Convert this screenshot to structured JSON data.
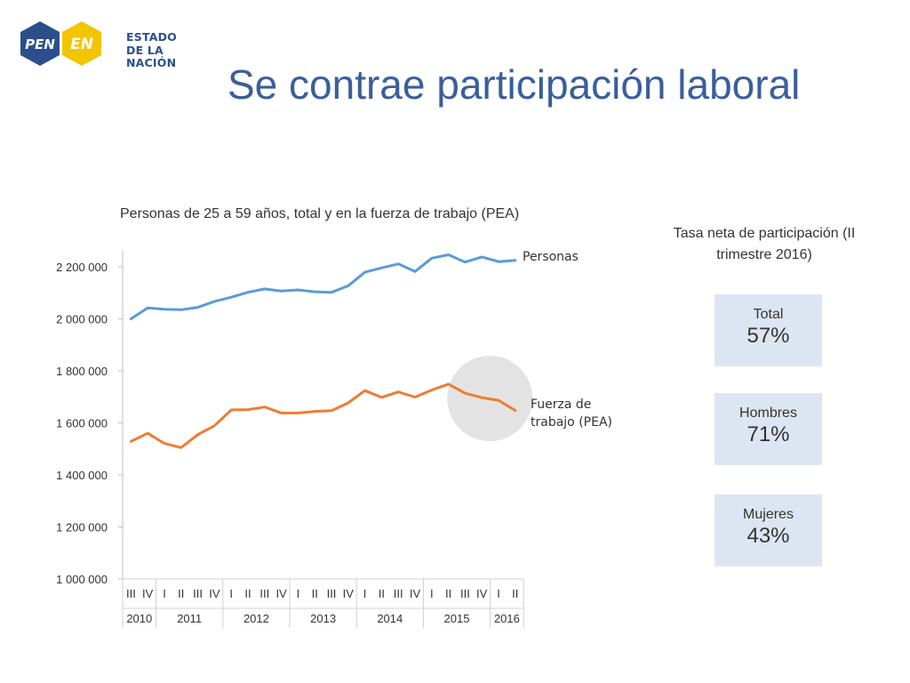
{
  "logo": {
    "badge_left": "PEN",
    "badge_right": "EN",
    "line1": "ESTADO",
    "line2": "DE LA NACIÓN"
  },
  "title": "Se contrae participación laboral",
  "colors": {
    "accent": "#3a5f9a",
    "personas": "#5b9bd5",
    "pea": "#ed7d31",
    "box": "#dce6f2",
    "highlight": "#e3e3e3"
  },
  "chart_data": {
    "type": "line",
    "title": "Personas de 25 a 59 años, total y en la fuerza de trabajo (PEA)",
    "ylim": [
      1000000,
      2200000
    ],
    "yticks": [
      1000000,
      1200000,
      1400000,
      1600000,
      1800000,
      2000000,
      2200000
    ],
    "ytick_labels": [
      "1 000 000",
      "1 200 000",
      "1 400 000",
      "1 600 000",
      "1 800 000",
      "2 000 000",
      "2 200 000"
    ],
    "grid": false,
    "categories": [
      "III",
      "IV",
      "I",
      "II",
      "III",
      "IV",
      "I",
      "II",
      "III",
      "IV",
      "I",
      "II",
      "III",
      "IV",
      "I",
      "II",
      "III",
      "IV",
      "I",
      "II",
      "III",
      "IV",
      "I",
      "II"
    ],
    "years": [
      {
        "label": "2010",
        "count": 2
      },
      {
        "label": "2011",
        "count": 4
      },
      {
        "label": "2012",
        "count": 4
      },
      {
        "label": "2013",
        "count": 4
      },
      {
        "label": "2014",
        "count": 4
      },
      {
        "label": "2015",
        "count": 4
      },
      {
        "label": "2016",
        "count": 2
      }
    ],
    "series": [
      {
        "name": "Personas",
        "values": [
          2000000,
          2042000,
          2037000,
          2035000,
          2044000,
          2067000,
          2083000,
          2102000,
          2115000,
          2107000,
          2111000,
          2104000,
          2102000,
          2127000,
          2179000,
          2196000,
          2211000,
          2182000,
          2233000,
          2246000,
          2218000,
          2238000,
          2220000,
          2225000
        ]
      },
      {
        "name": "Fuerza de trabajo (PEA)",
        "values": [
          1529000,
          1560000,
          1521000,
          1505000,
          1555000,
          1589000,
          1650000,
          1651000,
          1661000,
          1638000,
          1638000,
          1644000,
          1647000,
          1677000,
          1724000,
          1698000,
          1719000,
          1699000,
          1726000,
          1749000,
          1714000,
          1697000,
          1687000,
          1648000
        ]
      }
    ],
    "highlight_index": 21
  },
  "rates": {
    "title": "Tasa neta de participación (II trimestre 2016)",
    "items": [
      {
        "label": "Total",
        "value": "57%"
      },
      {
        "label": "Hombres",
        "value": "71%"
      },
      {
        "label": "Mujeres",
        "value": "43%"
      }
    ]
  }
}
